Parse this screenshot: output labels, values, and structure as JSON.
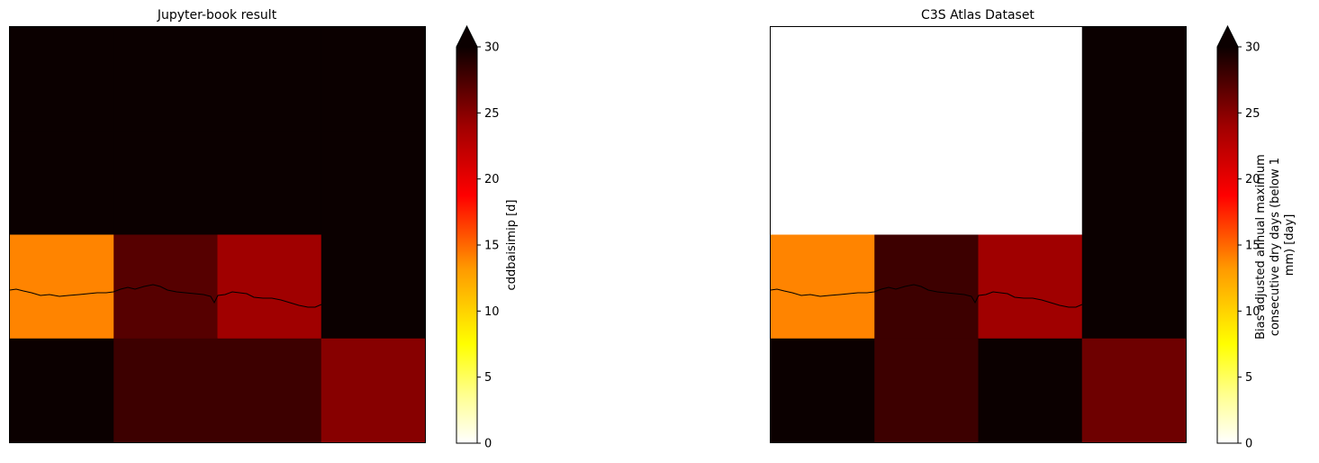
{
  "colors": {
    "axis": "#000000",
    "background": "#ffffff",
    "colormap": "hot_r"
  },
  "chart_data": [
    {
      "type": "heatmap",
      "title": "Jupyter-book result",
      "xlabel": "",
      "ylabel": "",
      "grid": false,
      "projection": "map with coastline",
      "rows": 4,
      "cols": 4,
      "values": [
        [
          31,
          31,
          31,
          31
        ],
        [
          31,
          31,
          31,
          31
        ],
        [
          14,
          27,
          24,
          31
        ],
        [
          31,
          28,
          28,
          25
        ]
      ],
      "colorbar": {
        "label": "cddbaisimip [d]",
        "range": [
          0,
          30
        ],
        "ticks": [
          0,
          5,
          10,
          15,
          20,
          25,
          30
        ],
        "extend": "max"
      }
    },
    {
      "type": "heatmap",
      "title": "C3S Atlas Dataset",
      "xlabel": "",
      "ylabel": "",
      "grid": false,
      "projection": "map with coastline",
      "rows": 4,
      "cols": 4,
      "values": [
        [
          null,
          null,
          null,
          31
        ],
        [
          null,
          null,
          null,
          31
        ],
        [
          14,
          28,
          24,
          31
        ],
        [
          31,
          28,
          31,
          26
        ]
      ],
      "colorbar": {
        "label": "Bias adjusted annual maximum consecutive dry days (below 1 mm) [day]",
        "label_lines": [
          "Bias adjusted annual maximum",
          "consecutive dry days (below 1",
          "mm) [day]"
        ],
        "range": [
          0,
          30
        ],
        "ticks": [
          0,
          5,
          10,
          15,
          20,
          25,
          30
        ],
        "extend": "max"
      }
    }
  ]
}
